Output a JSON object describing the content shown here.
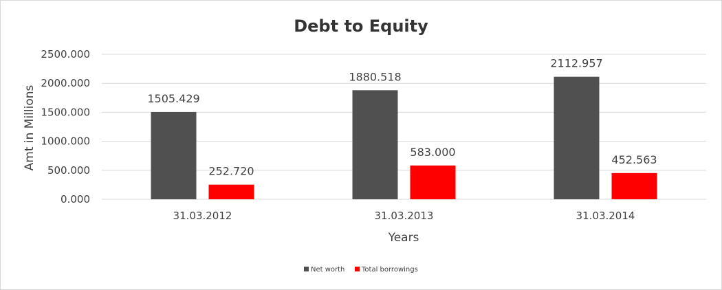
{
  "chart_data": {
    "type": "bar",
    "title": "Debt to Equity",
    "xlabel": "Years",
    "ylabel": "Amt in Millions",
    "categories": [
      "31.03.2012",
      "31.03.2013",
      "31.03.2014"
    ],
    "series": [
      {
        "name": "Net worth",
        "color": "#505050",
        "values": [
          1505.429,
          1880.518,
          2112.957
        ],
        "labels": [
          "1505.429",
          "1880.518",
          "2112.957"
        ]
      },
      {
        "name": "Total borrowings",
        "color": "#ff0000",
        "values": [
          252.72,
          583.0,
          452.563
        ],
        "labels": [
          "252.720",
          "583.000",
          "452.563"
        ]
      }
    ],
    "ylim": [
      0,
      2500
    ],
    "yticks": [
      0,
      500,
      1000,
      1500,
      2000,
      2500
    ],
    "ytick_labels": [
      "0.000",
      "500.000",
      "1000.000",
      "1500.000",
      "2000.000",
      "2500.000"
    ],
    "grid": true,
    "gridline_color": "#d9d9d9",
    "legend_position": "bottom"
  }
}
